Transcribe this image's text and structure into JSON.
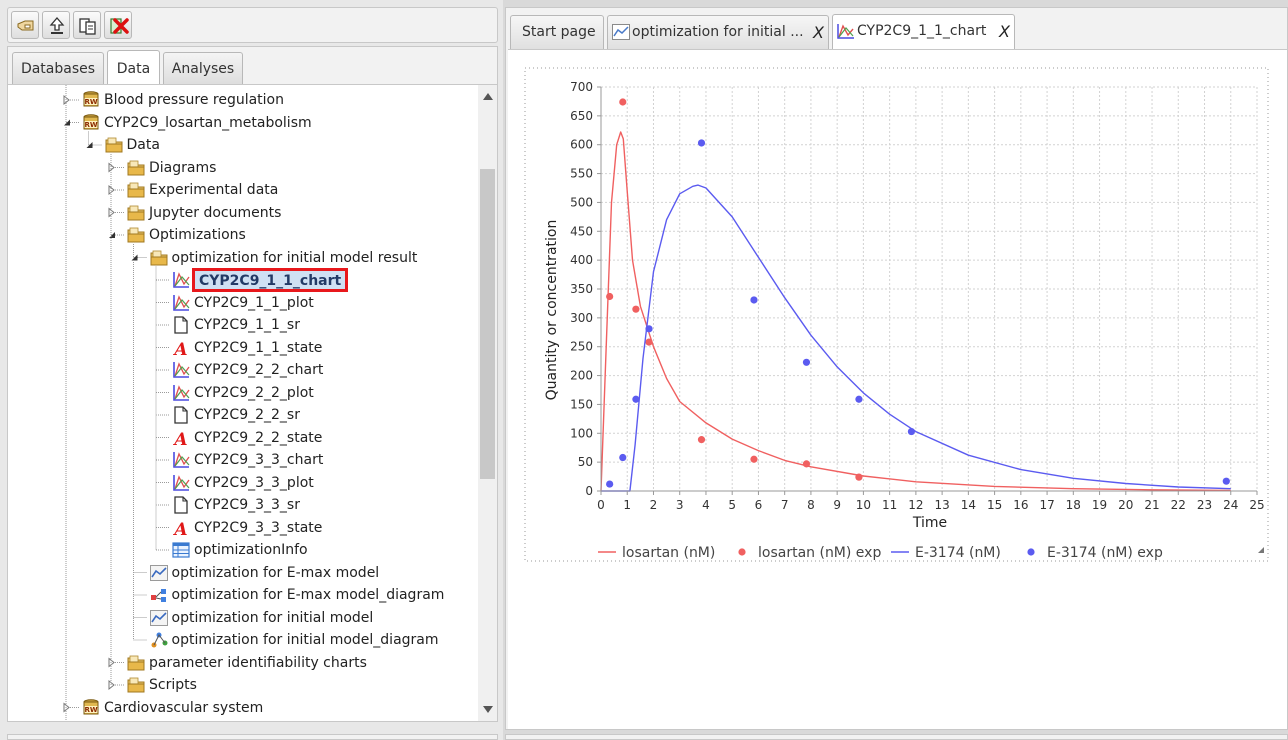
{
  "left_panel": {
    "tabs": [
      {
        "label": "Databases"
      },
      {
        "label": "Data"
      },
      {
        "label": "Analyses"
      }
    ],
    "tree": [
      {
        "label": "Blood pressure regulation",
        "icon": "database-rw-icon",
        "depth": 0,
        "expander": "collapsed"
      },
      {
        "label": "CYP2C9_losartan_metabolism",
        "icon": "database-rw-icon",
        "depth": 0,
        "expander": "expanded"
      },
      {
        "label": "Data",
        "icon": "folder-icon",
        "depth": 1,
        "expander": "expanded"
      },
      {
        "label": "Diagrams",
        "icon": "folder-icon",
        "depth": 2,
        "expander": "collapsed"
      },
      {
        "label": "Experimental data",
        "icon": "folder-icon",
        "depth": 2,
        "expander": "collapsed"
      },
      {
        "label": "Jupyter documents",
        "icon": "folder-icon",
        "depth": 2,
        "expander": "collapsed"
      },
      {
        "label": "Optimizations",
        "icon": "folder-icon",
        "depth": 2,
        "expander": "expanded"
      },
      {
        "label": "optimization for initial model result",
        "icon": "folder-icon",
        "depth": 3,
        "expander": "expanded"
      },
      {
        "label": "CYP2C9_1_1_chart",
        "icon": "chart-icon",
        "depth": 4,
        "expander": "none",
        "selected": true
      },
      {
        "label": "CYP2C9_1_1_plot",
        "icon": "chart-icon",
        "depth": 4,
        "expander": "none"
      },
      {
        "label": "CYP2C9_1_1_sr",
        "icon": "document-icon",
        "depth": 4,
        "expander": "none"
      },
      {
        "label": "CYP2C9_1_1_state",
        "icon": "state-icon",
        "depth": 4,
        "expander": "none"
      },
      {
        "label": "CYP2C9_2_2_chart",
        "icon": "chart-icon",
        "depth": 4,
        "expander": "none"
      },
      {
        "label": "CYP2C9_2_2_plot",
        "icon": "chart-icon",
        "depth": 4,
        "expander": "none"
      },
      {
        "label": "CYP2C9_2_2_sr",
        "icon": "document-icon",
        "depth": 4,
        "expander": "none"
      },
      {
        "label": "CYP2C9_2_2_state",
        "icon": "state-icon",
        "depth": 4,
        "expander": "none"
      },
      {
        "label": "CYP2C9_3_3_chart",
        "icon": "chart-icon",
        "depth": 4,
        "expander": "none"
      },
      {
        "label": "CYP2C9_3_3_plot",
        "icon": "chart-icon",
        "depth": 4,
        "expander": "none"
      },
      {
        "label": "CYP2C9_3_3_sr",
        "icon": "document-icon",
        "depth": 4,
        "expander": "none"
      },
      {
        "label": "CYP2C9_3_3_state",
        "icon": "state-icon",
        "depth": 4,
        "expander": "none"
      },
      {
        "label": "optimizationInfo",
        "icon": "table-icon",
        "depth": 4,
        "expander": "none"
      },
      {
        "label": "optimization for E-max model",
        "icon": "optimization-icon",
        "depth": 3,
        "expander": "none"
      },
      {
        "label": "optimization for E-max model_diagram",
        "icon": "diagram-icon",
        "depth": 3,
        "expander": "none"
      },
      {
        "label": "optimization for initial model",
        "icon": "optimization-icon",
        "depth": 3,
        "expander": "none"
      },
      {
        "label": "optimization for initial model_diagram",
        "icon": "network-diagram-icon",
        "depth": 3,
        "expander": "none"
      },
      {
        "label": "parameter identifiability charts",
        "icon": "folder-icon",
        "depth": 2,
        "expander": "collapsed"
      },
      {
        "label": "Scripts",
        "icon": "folder-icon",
        "depth": 2,
        "expander": "collapsed"
      },
      {
        "label": "Cardiovascular system",
        "icon": "database-rw-icon",
        "depth": 0,
        "expander": "collapsed"
      }
    ]
  },
  "icons": {
    "db_badge": "RW",
    "state_glyph": "A",
    "tab_close": "X"
  },
  "right_panel": {
    "tabs": [
      {
        "label": "Start page",
        "icon": ""
      },
      {
        "label": "optimization for initial ...",
        "icon": "chart-icon"
      },
      {
        "label": "CYP2C9_1_1_chart",
        "icon": "chart-icon"
      }
    ]
  },
  "colors": {
    "losartan": "#f06060",
    "e3174": "#5b5bf0",
    "selection_border": "#e8181c",
    "folder": "#e8c46a"
  },
  "chart_data": {
    "type": "scatter",
    "xlabel": "Time",
    "ylabel": "Quantity or concentration",
    "xlim": [
      0,
      25
    ],
    "ylim": [
      0,
      700
    ],
    "xticks": [
      0,
      1,
      2,
      3,
      4,
      5,
      6,
      7,
      8,
      9,
      10,
      11,
      12,
      13,
      14,
      15,
      16,
      17,
      18,
      19,
      20,
      21,
      22,
      23,
      24,
      25
    ],
    "yticks": [
      0,
      50,
      100,
      150,
      200,
      250,
      300,
      350,
      400,
      450,
      500,
      550,
      600,
      650,
      700
    ],
    "grid": true,
    "legend_position": "bottom",
    "series": [
      {
        "name": "losartan (nM)",
        "kind": "line",
        "color": "#f06060",
        "x": [
          0,
          0.2,
          0.4,
          0.6,
          0.75,
          0.85,
          1.0,
          1.2,
          1.5,
          2.0,
          2.5,
          3.0,
          4.0,
          5.0,
          6.0,
          7.0,
          8.0,
          10.0,
          12.0,
          15.0,
          18.0,
          21.0,
          24.0
        ],
        "y": [
          0,
          250,
          500,
          600,
          622,
          610,
          520,
          400,
          320,
          250,
          195,
          155,
          118,
          90,
          70,
          53,
          42,
          26,
          16,
          8,
          4,
          2,
          1
        ]
      },
      {
        "name": "losartan (nM) exp",
        "kind": "points",
        "color": "#f06060",
        "x": [
          0.33,
          0.83,
          1.33,
          1.83,
          3.83,
          5.83,
          7.83,
          9.83
        ],
        "y": [
          337,
          674,
          315,
          258,
          89,
          55,
          47,
          24
        ]
      },
      {
        "name": "E-3174 (nM)",
        "kind": "line",
        "color": "#5b5bf0",
        "x": [
          0,
          1.1,
          1.3,
          1.6,
          2.0,
          2.5,
          3.0,
          3.5,
          3.7,
          4.0,
          5.0,
          6.0,
          7.0,
          8.0,
          9.0,
          10.0,
          11.0,
          12.0,
          14.0,
          16.0,
          18.0,
          20.0,
          22.0,
          24.0
        ],
        "y": [
          0,
          0,
          80,
          230,
          380,
          470,
          515,
          528,
          530,
          525,
          475,
          405,
          335,
          270,
          215,
          170,
          133,
          103,
          62,
          37,
          22,
          13,
          7,
          4
        ]
      },
      {
        "name": "E-3174 (nM) exp",
        "kind": "points",
        "color": "#5b5bf0",
        "x": [
          0.33,
          0.83,
          1.33,
          1.83,
          3.83,
          5.83,
          7.83,
          9.83,
          11.83,
          23.83
        ],
        "y": [
          12,
          58,
          159,
          281,
          603,
          331,
          223,
          159,
          103,
          17
        ]
      }
    ]
  }
}
